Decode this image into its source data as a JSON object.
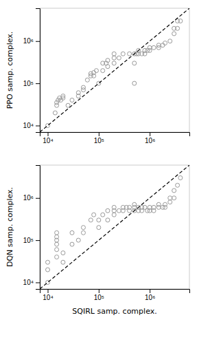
{
  "chart_data": [
    {
      "type": "scatter",
      "ylabel": "PPO samp. complex.",
      "log": true,
      "grid": false,
      "xlim": [
        7000,
        6000000
      ],
      "ylim": [
        7000,
        6000000
      ],
      "xticks": [
        {
          "value": 10000,
          "label": "10⁴"
        },
        {
          "value": 100000,
          "label": "10⁵"
        },
        {
          "value": 1000000,
          "label": "10⁶"
        }
      ],
      "yticks": [
        {
          "value": 10000,
          "label": "10⁴"
        },
        {
          "value": 100000,
          "label": "10⁵"
        },
        {
          "value": 1000000,
          "label": "10⁶"
        }
      ],
      "series": [
        {
          "type": "scatter",
          "color": "#999999",
          "marker": "hollow-circle",
          "x": [
            10000.0,
            14000.0,
            15000.0,
            15000.0,
            16000.0,
            17000.0,
            18000.0,
            20000.0,
            20000.0,
            25000.0,
            30000.0,
            40000.0,
            40000.0,
            50000.0,
            50000.0,
            60000.0,
            70000.0,
            70000.0,
            80000.0,
            80000.0,
            90000.0,
            100000.0,
            120000.0,
            120000.0,
            140000.0,
            150000.0,
            150000.0,
            200000.0,
            200000.0,
            200000.0,
            250000.0,
            300000.0,
            400000.0,
            500000.0,
            500000.0,
            500000.0,
            550000.0,
            600000.0,
            600000.0,
            700000.0,
            800000.0,
            800000.0,
            900000.0,
            1000000.0,
            1000000.0,
            1200000.0,
            1500000.0,
            1500000.0,
            1800000.0,
            2000000.0,
            2500000.0,
            3000000.0,
            3000000.0,
            3500000.0,
            3500000.0,
            4000000.0
          ],
          "values": [
            10000.0,
            20000.0,
            30000.0,
            35000.0,
            40000.0,
            45000.0,
            40000.0,
            45000.0,
            50000.0,
            30000.0,
            40000.0,
            50000.0,
            60000.0,
            70000.0,
            80000.0,
            120000.0,
            150000.0,
            170000.0,
            150000.0,
            180000.0,
            200000.0,
            100000.0,
            200000.0,
            300000.0,
            300000.0,
            250000.0,
            350000.0,
            300000.0,
            400000.0,
            500000.0,
            400000.0,
            500000.0,
            500000.0,
            100000.0,
            300000.0,
            500000.0,
            500000.0,
            500000.0,
            600000.0,
            500000.0,
            500000.0,
            600000.0,
            600000.0,
            600000.0,
            700000.0,
            700000.0,
            700000.0,
            800000.0,
            800000.0,
            900000.0,
            1000000.0,
            1500000.0,
            2000000.0,
            2000000.0,
            3000000.0,
            3000000.0
          ]
        },
        {
          "type": "line",
          "color": "black",
          "line_style": "dashed",
          "x": [
            7000,
            6000000
          ],
          "values": [
            7000,
            6000000
          ]
        }
      ]
    },
    {
      "type": "scatter",
      "xlabel": "SQIRL samp. complex.",
      "ylabel": "DQN samp. complex.",
      "log": true,
      "grid": false,
      "xlim": [
        7000,
        6000000
      ],
      "ylim": [
        7000,
        6000000
      ],
      "xticks": [
        {
          "value": 10000,
          "label": "10⁴"
        },
        {
          "value": 100000,
          "label": "10⁵"
        },
        {
          "value": 1000000,
          "label": "10⁶"
        }
      ],
      "yticks": [
        {
          "value": 10000,
          "label": "10⁴"
        },
        {
          "value": 100000,
          "label": "10⁵"
        },
        {
          "value": 1000000,
          "label": "10⁶"
        }
      ],
      "series": [
        {
          "type": "scatter",
          "color": "#999999",
          "marker": "hollow-circle",
          "x": [
            10000.0,
            10000.0,
            10000.0,
            15000.0,
            15000.0,
            15000.0,
            15000.0,
            15000.0,
            15000.0,
            20000.0,
            20000.0,
            30000.0,
            30000.0,
            40000.0,
            50000.0,
            50000.0,
            70000.0,
            80000.0,
            100000.0,
            100000.0,
            120000.0,
            150000.0,
            150000.0,
            200000.0,
            200000.0,
            200000.0,
            250000.0,
            300000.0,
            300000.0,
            350000.0,
            400000.0,
            400000.0,
            500000.0,
            500000.0,
            500000.0,
            600000.0,
            600000.0,
            700000.0,
            700000.0,
            800000.0,
            900000.0,
            1000000.0,
            1000000.0,
            1200000.0,
            1200000.0,
            1500000.0,
            1500000.0,
            1800000.0,
            2000000.0,
            2000000.0,
            2500000.0,
            2500000.0,
            3000000.0,
            3000000.0,
            3500000.0,
            4000000.0
          ],
          "values": [
            10000.0,
            20000.0,
            30000.0,
            40000.0,
            60000.0,
            80000.0,
            100000.0,
            120000.0,
            150000.0,
            30000.0,
            50000.0,
            80000.0,
            150000.0,
            100000.0,
            150000.0,
            200000.0,
            300000.0,
            400000.0,
            200000.0,
            300000.0,
            400000.0,
            300000.0,
            500000.0,
            400000.0,
            500000.0,
            600000.0,
            500000.0,
            500000.0,
            600000.0,
            600000.0,
            500000.0,
            600000.0,
            500000.0,
            600000.0,
            700000.0,
            500000.0,
            600000.0,
            500000.0,
            600000.0,
            600000.0,
            500000.0,
            500000.0,
            600000.0,
            500000.0,
            600000.0,
            600000.0,
            700000.0,
            600000.0,
            600000.0,
            700000.0,
            800000.0,
            1000000.0,
            1000000.0,
            1500000.0,
            2000000.0,
            3000000.0
          ]
        },
        {
          "type": "line",
          "color": "black",
          "line_style": "dashed",
          "x": [
            7000,
            6000000
          ],
          "values": [
            7000,
            6000000
          ]
        }
      ]
    }
  ]
}
